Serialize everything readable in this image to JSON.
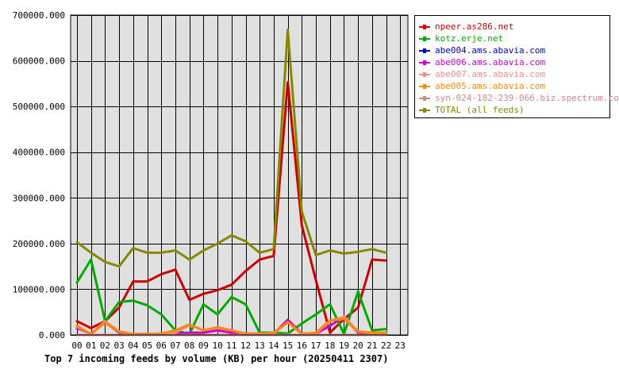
{
  "chart_data": {
    "type": "line",
    "title": "Top 7 incoming feeds by volume (KB) per hour (20250411 2307)",
    "categories": [
      "00",
      "01",
      "02",
      "03",
      "04",
      "05",
      "06",
      "07",
      "08",
      "09",
      "10",
      "11",
      "12",
      "13",
      "14",
      "15",
      "16",
      "17",
      "18",
      "19",
      "20",
      "21",
      "22",
      "23"
    ],
    "ylim": [
      0,
      700000
    ],
    "y_ticks": [
      "0.000",
      "100000.000",
      "200000.000",
      "300000.000",
      "400000.000",
      "500000.000",
      "600000.000",
      "700000.000"
    ],
    "y_tick_values": [
      0,
      100000,
      200000,
      300000,
      400000,
      500000,
      600000,
      700000
    ],
    "grid": true,
    "legend_position": "right",
    "plot_background": "#e0e0e0",
    "series": [
      {
        "name": "npeer.as286.net",
        "color": "#cc0000",
        "values": [
          30000,
          15000,
          30000,
          60000,
          117000,
          117000,
          133000,
          143000,
          77000,
          90000,
          98000,
          110000,
          140000,
          165000,
          173000,
          553000,
          240000,
          120000,
          5000,
          35000,
          60000,
          165000,
          163000,
          null
        ]
      },
      {
        "name": "kotz.erje.net",
        "color": "#00aa00",
        "values": [
          115000,
          165000,
          30000,
          72000,
          75000,
          65000,
          45000,
          10000,
          2000,
          67000,
          45000,
          83000,
          67000,
          5000,
          5000,
          3000,
          25000,
          45000,
          67000,
          2000,
          95000,
          10000,
          13000,
          null
        ]
      },
      {
        "name": "abe004.ams.abavia.com",
        "color": "#0000cc",
        "values": [
          0,
          0,
          0,
          0,
          0,
          0,
          0,
          0,
          0,
          0,
          0,
          0,
          0,
          0,
          0,
          0,
          0,
          0,
          0,
          0,
          0,
          0,
          0,
          null
        ]
      },
      {
        "name": "abe006.ams.abavia.com",
        "color": "#cc00cc",
        "values": [
          15000,
          3000,
          28000,
          5000,
          2000,
          2000,
          2000,
          3000,
          5000,
          5000,
          10000,
          5000,
          3000,
          3000,
          3000,
          33000,
          3000,
          3000,
          20000,
          40000,
          5000,
          5000,
          5000,
          null
        ]
      },
      {
        "name": "abe007.ams.abavia.com",
        "color": "#ff8888",
        "values": [
          18000,
          2000,
          30000,
          8000,
          2000,
          2000,
          3000,
          5000,
          22000,
          10000,
          15000,
          10000,
          3000,
          3000,
          3000,
          28000,
          3000,
          3000,
          30000,
          40000,
          8000,
          5000,
          5000,
          null
        ]
      },
      {
        "name": "abe005.ams.abavia.com",
        "color": "#ff8800",
        "values": [
          20000,
          2000,
          27000,
          7000,
          2000,
          2000,
          3000,
          10000,
          23000,
          10000,
          17000,
          10000,
          2000,
          2000,
          5000,
          28000,
          2000,
          5000,
          32000,
          35000,
          7000,
          5000,
          5000,
          null
        ]
      },
      {
        "name": "syn-024-182-239-066.biz.spectrum.com",
        "color": "#cc8888",
        "values": [
          0,
          0,
          0,
          0,
          0,
          0,
          0,
          0,
          0,
          0,
          0,
          0,
          0,
          0,
          0,
          0,
          0,
          0,
          0,
          0,
          0,
          0,
          0,
          null
        ]
      },
      {
        "name": "TOTAL (all feeds)",
        "color": "#888800",
        "values": [
          203000,
          180000,
          160000,
          150000,
          190000,
          180000,
          180000,
          185000,
          165000,
          185000,
          200000,
          218000,
          205000,
          180000,
          188000,
          668000,
          270000,
          175000,
          185000,
          178000,
          182000,
          188000,
          180000,
          null
        ]
      }
    ]
  }
}
